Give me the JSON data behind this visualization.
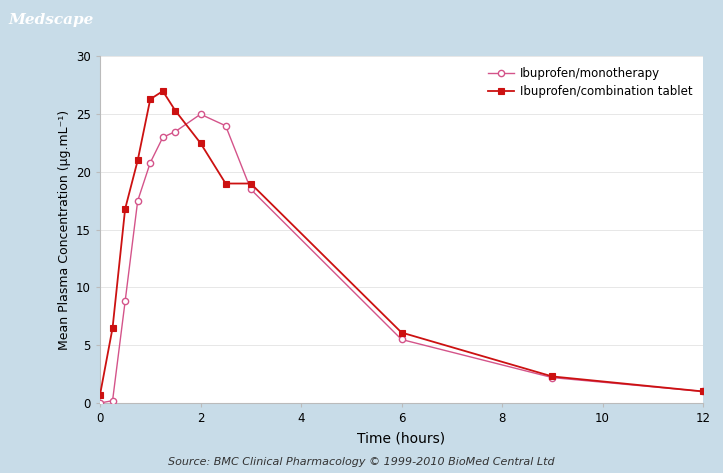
{
  "mono_x": [
    0,
    0.25,
    0.5,
    0.75,
    1.0,
    1.25,
    1.5,
    2.0,
    2.5,
    3.0,
    6.0,
    9.0,
    12.0
  ],
  "mono_y": [
    0.0,
    0.2,
    8.8,
    17.5,
    20.8,
    23.0,
    23.5,
    25.0,
    24.0,
    18.5,
    5.5,
    2.2,
    1.0
  ],
  "combo_x": [
    0,
    0.25,
    0.5,
    0.75,
    1.0,
    1.25,
    1.5,
    2.0,
    2.5,
    3.0,
    6.0,
    9.0,
    12.0
  ],
  "combo_y": [
    0.7,
    6.5,
    16.8,
    21.0,
    26.3,
    27.0,
    25.3,
    22.5,
    19.0,
    19.0,
    6.1,
    2.3,
    1.0
  ],
  "mono_color": "#d4548a",
  "combo_color": "#cc1111",
  "xlabel": "Time (hours)",
  "ylabel": "Mean Plasma Concentration (μg.mL⁻¹)",
  "legend_mono": "Ibuprofen/monotherapy",
  "legend_combo": "Ibuprofen/combination tablet",
  "xlim": [
    0,
    12
  ],
  "ylim": [
    0,
    30
  ],
  "xticks": [
    0,
    2,
    4,
    6,
    8,
    10,
    12
  ],
  "yticks": [
    0,
    5,
    10,
    15,
    20,
    25,
    30
  ],
  "source_text": "Source: BMC Clinical Pharmacology © 1999-2010 BioMed Central Ltd",
  "header_text": "Medscape",
  "header_bg": "#4a7fa5",
  "header_text_color": "#ffffff",
  "plot_bg": "#ffffff",
  "fig_bg": "#c8dce8"
}
